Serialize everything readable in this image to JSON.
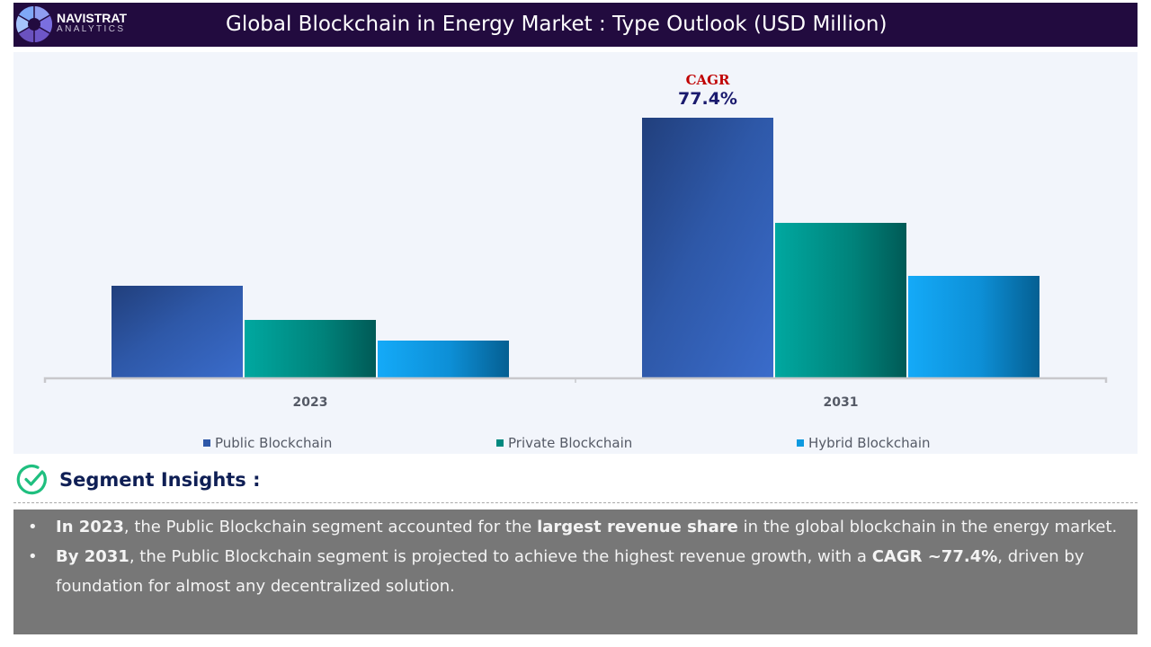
{
  "header": {
    "brand_name": "NAVISTRAT",
    "brand_sub": "ANALYTICS",
    "title": "Global Blockchain in Energy Market : Type Outlook (USD Million)"
  },
  "chart_data": {
    "type": "bar",
    "title": "Global Blockchain in Energy Market : Type Outlook (USD Million)",
    "xlabel": "",
    "ylabel": "USD Million",
    "categories": [
      "2023",
      "2031"
    ],
    "series": [
      {
        "name": "Public Blockchain",
        "values": [
          103,
          290
        ],
        "color": "#3a66c4"
      },
      {
        "name": "Private Blockchain",
        "values": [
          65,
          173
        ],
        "color": "#00a39b"
      },
      {
        "name": "Hybrid Blockchain",
        "values": [
          42,
          114
        ],
        "color": "#16a8f4"
      }
    ],
    "ylim": [
      0,
      290
    ],
    "grid": false,
    "legend": "bottom",
    "annotation": {
      "label": "CAGR",
      "value": "77.4%",
      "target": "2031 Public Blockchain"
    },
    "note": "Values are relative estimates read from bar heights; no y-axis ticks shown."
  },
  "insights": {
    "title": "Segment Insights :",
    "bullets": [
      {
        "parts": [
          {
            "text": "In 2023",
            "bold": true
          },
          {
            "text": ", the Public Blockchain segment accounted for the ",
            "bold": false
          },
          {
            "text": "largest revenue share",
            "bold": true
          },
          {
            "text": " in the global blockchain in the energy market.",
            "bold": false
          }
        ]
      },
      {
        "parts": [
          {
            "text": "By 2031",
            "bold": true
          },
          {
            "text": ", the Public Blockchain segment is projected to achieve the highest revenue growth, with a ",
            "bold": false
          },
          {
            "text": "CAGR ~77.4%",
            "bold": true
          },
          {
            "text": ", driven by foundation for almost any decentralized solution.",
            "bold": false
          }
        ]
      }
    ]
  },
  "colors": {
    "header_bg": "#220b3f",
    "panel_bg": "#f2f5fb",
    "cagr_label": "#c00000",
    "cagr_value": "#1a1a6e",
    "insights_title": "#0f1f55",
    "check_icon": "#1fbf7f",
    "insights_bg": "#777777"
  }
}
